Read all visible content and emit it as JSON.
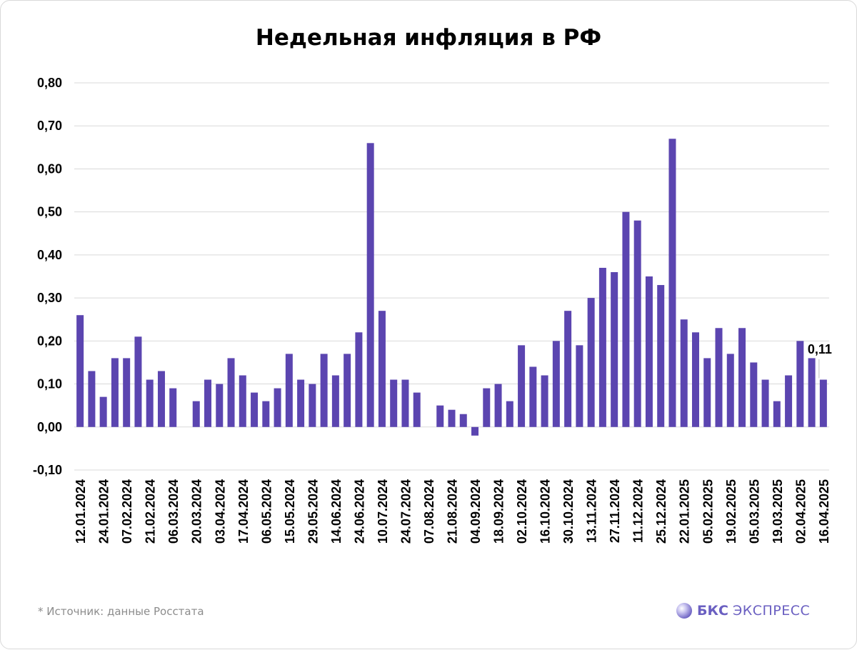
{
  "title": "Недельная инфляция в РФ",
  "source_note": "* Источник: данные Росстата",
  "brand": {
    "name": "БКС",
    "sub": "ЭКСПРЕСС",
    "logo_icon": "bks-sphere-icon",
    "color": "#6a5fc1"
  },
  "chart_data": {
    "type": "bar",
    "title": "Недельная инфляция в РФ",
    "xlabel": "",
    "ylabel": "",
    "ylim": [
      -0.1,
      0.8
    ],
    "yticks": [
      "0,80",
      "0,70",
      "0,60",
      "0,50",
      "0,40",
      "0,30",
      "0,20",
      "0,10",
      "0,00",
      "-0,10"
    ],
    "ytick_values": [
      0.8,
      0.7,
      0.6,
      0.5,
      0.4,
      0.3,
      0.2,
      0.1,
      0.0,
      -0.1
    ],
    "grid": true,
    "bar_color": "#5b45b0",
    "xtick_labels": [
      "12.01.2024",
      "24.01.2024",
      "07.02.2024",
      "21.02.2024",
      "06.03.2024",
      "20.03.2024",
      "03.04.2024",
      "17.04.2024",
      "06.05.2024",
      "15.05.2024",
      "29.05.2024",
      "14.06.2024",
      "24.06.2024",
      "10.07.2024",
      "24.07.2024",
      "07.08.2024",
      "21.08.2024",
      "04.09.2024",
      "18.09.2024",
      "02.10.2024",
      "16.10.2024",
      "30.10.2024",
      "13.11.2024",
      "27.11.2024",
      "11.12.2024",
      "25.12.2024",
      "22.01.2025",
      "05.02.2025",
      "19.02.2025",
      "05.03.2025",
      "19.03.2025",
      "02.04.2025",
      "16.04.2025"
    ],
    "values": [
      0.26,
      0.13,
      0.07,
      0.16,
      0.16,
      0.21,
      0.11,
      0.13,
      0.09,
      0.0,
      0.06,
      0.11,
      0.1,
      0.16,
      0.12,
      0.08,
      0.06,
      0.09,
      0.17,
      0.11,
      0.1,
      0.17,
      0.12,
      0.17,
      0.22,
      0.66,
      0.27,
      0.11,
      0.11,
      0.08,
      0.0,
      0.05,
      0.04,
      0.03,
      -0.02,
      0.09,
      0.1,
      0.06,
      0.19,
      0.14,
      0.12,
      0.2,
      0.27,
      0.19,
      0.3,
      0.37,
      0.36,
      0.5,
      0.48,
      0.35,
      0.33,
      0.67,
      0.25,
      0.22,
      0.16,
      0.23,
      0.17,
      0.23,
      0.15,
      0.11,
      0.06,
      0.12,
      0.2,
      0.16,
      0.11
    ],
    "data_label": "0,11"
  }
}
